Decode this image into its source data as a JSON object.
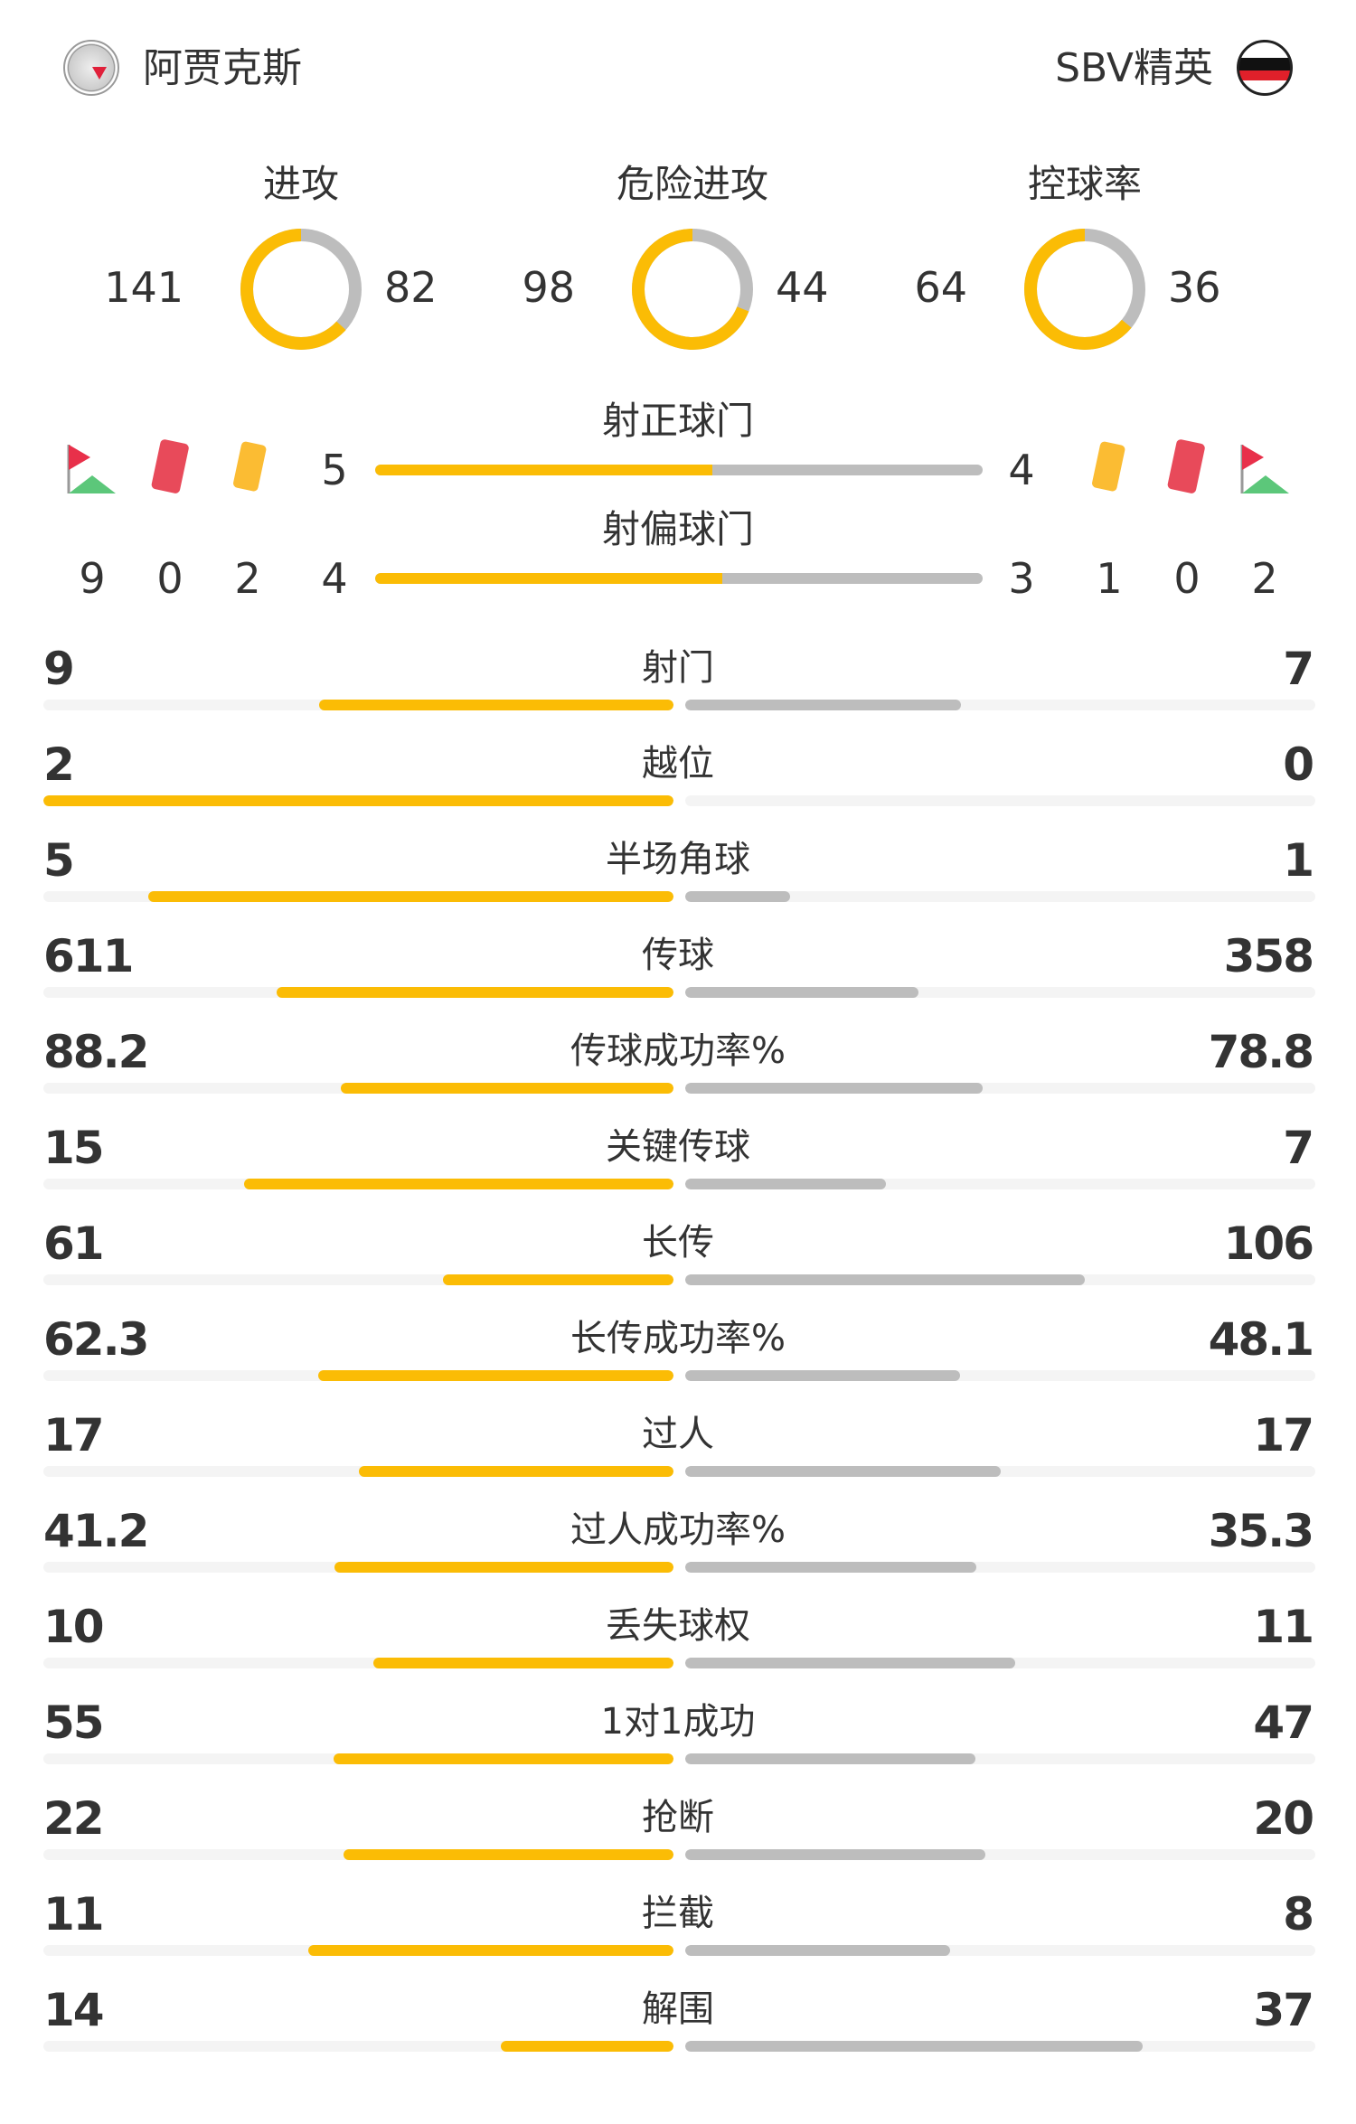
{
  "header": {
    "home_team": "阿贾克斯",
    "away_team": "SBV精英",
    "home_logo": "ajax-logo",
    "away_logo": "excelsior-logo"
  },
  "colors": {
    "home": "#fbbc05",
    "away": "#bdbdbd",
    "track": "#f4f4f4",
    "red_card": "#e84a5a",
    "yellow_card": "#fbbc33",
    "corner_flag": "#e8304a",
    "corner_ground": "#5cc77a"
  },
  "pies": [
    {
      "title": "进攻",
      "home": 141,
      "away": 82
    },
    {
      "title": "危险进攻",
      "home": 98,
      "away": 44
    },
    {
      "title": "控球率",
      "home": 64,
      "away": 36
    }
  ],
  "shots_on": {
    "title": "射正球门",
    "home": 5,
    "away": 4
  },
  "shots_off": {
    "title": "射偏球门",
    "home": 4,
    "away": 3
  },
  "home_counts": {
    "corners": 9,
    "red": 0,
    "yellow": 2
  },
  "away_counts": {
    "corners": 2,
    "red": 0,
    "yellow": 1
  },
  "icons": {
    "corner": "corner-flag-icon",
    "red": "red-card-icon",
    "yellow": "yellow-card-icon"
  },
  "stats": [
    {
      "label": "射门",
      "home": "9",
      "away": "7"
    },
    {
      "label": "越位",
      "home": "2",
      "away": "0"
    },
    {
      "label": "半场角球",
      "home": "5",
      "away": "1"
    },
    {
      "label": "传球",
      "home": "611",
      "away": "358"
    },
    {
      "label": "传球成功率%",
      "home": "88.2",
      "away": "78.8"
    },
    {
      "label": "关键传球",
      "home": "15",
      "away": "7"
    },
    {
      "label": "长传",
      "home": "61",
      "away": "106"
    },
    {
      "label": "长传成功率%",
      "home": "62.3",
      "away": "48.1"
    },
    {
      "label": "过人",
      "home": "17",
      "away": "17"
    },
    {
      "label": "过人成功率%",
      "home": "41.2",
      "away": "35.3"
    },
    {
      "label": "丢失球权",
      "home": "10",
      "away": "11"
    },
    {
      "label": "1对1成功",
      "home": "55",
      "away": "47"
    },
    {
      "label": "抢断",
      "home": "22",
      "away": "20"
    },
    {
      "label": "拦截",
      "home": "11",
      "away": "8"
    },
    {
      "label": "解围",
      "home": "14",
      "away": "37"
    }
  ]
}
